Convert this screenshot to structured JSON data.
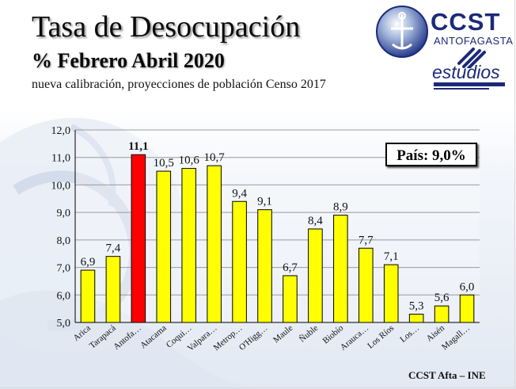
{
  "header": {
    "title": "Tasa de Desocupación",
    "subtitle": "% Febrero Abril 2020",
    "note": "nueva calibración, proyecciones de población Censo 2017"
  },
  "logo": {
    "name": "CCST",
    "city": "ANTOFAGASTA",
    "unit": "estudios",
    "colors": {
      "brand": "#1c2a7a"
    }
  },
  "badge": {
    "label": "País: 9,0%"
  },
  "footer": {
    "source": "CCST Afta – INE"
  },
  "chart_data": {
    "type": "bar",
    "title": "",
    "xlabel": "",
    "ylabel": "",
    "ylim": [
      5.0,
      12.0
    ],
    "yticks": [
      "5,0",
      "6,0",
      "7,0",
      "8,0",
      "9,0",
      "10,0",
      "11,0",
      "12,0"
    ],
    "grid": true,
    "categories": [
      "Arica",
      "Tarapacá",
      "Antofa…",
      "Atacama",
      "Coqui…",
      "Valpara…",
      "Metrop…",
      "O'Higg…",
      "Maule",
      "Ñuble",
      "Biobío",
      "Arauca…",
      "Los Ríos",
      "Los…",
      "Aisén",
      "Magall…"
    ],
    "values": [
      6.9,
      7.4,
      11.1,
      10.5,
      10.6,
      10.7,
      9.4,
      9.1,
      6.7,
      8.4,
      8.9,
      7.7,
      7.1,
      5.3,
      5.6,
      6.0
    ],
    "labels": [
      "6,9",
      "7,4",
      "11,1",
      "10,5",
      "10,6",
      "10,7",
      "9,4",
      "9,1",
      "6,7",
      "8,4",
      "8,9",
      "7,7",
      "7,1",
      "5,3",
      "5,6",
      "6,0"
    ],
    "highlight_index": 2,
    "colors": {
      "bar": "#ffff00",
      "highlight": "#ff0000",
      "outline": "#000000",
      "grid": "#9a9a9a"
    }
  }
}
